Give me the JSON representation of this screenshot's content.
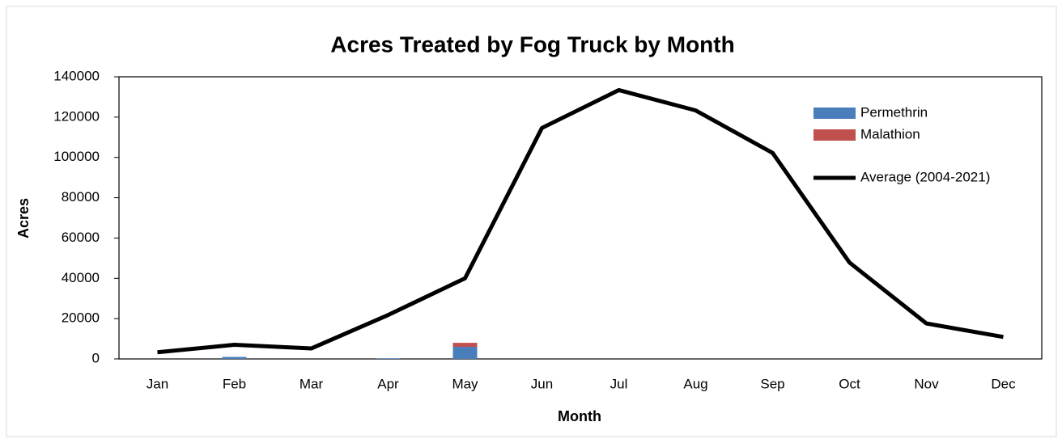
{
  "chart_data": {
    "type": "bar",
    "stacked": true,
    "title": "Acres Treated by Fog Truck by Month",
    "x_label": "Month",
    "y_label": "Acres",
    "categories": [
      "Jan",
      "Feb",
      "Mar",
      "Apr",
      "May",
      "Jun",
      "Jul",
      "Aug",
      "Sep",
      "Oct",
      "Nov",
      "Dec"
    ],
    "series": [
      {
        "name": "Permethrin",
        "type": "bar",
        "color": "#4a7ebb",
        "values": [
          0,
          1000,
          0,
          300,
          6000,
          0,
          0,
          0,
          0,
          0,
          0,
          0
        ]
      },
      {
        "name": "Malathion",
        "type": "bar",
        "color": "#c0504d",
        "values": [
          0,
          0,
          0,
          0,
          2000,
          0,
          0,
          0,
          0,
          0,
          0,
          0
        ]
      },
      {
        "name": "Average (2004-2021)",
        "type": "line",
        "color": "#000000",
        "values": [
          3300,
          7000,
          5200,
          21800,
          40000,
          114600,
          133400,
          123300,
          102200,
          47800,
          17600,
          10900
        ]
      }
    ],
    "ylim": [
      0,
      140000
    ],
    "yticks": [
      0,
      20000,
      40000,
      60000,
      80000,
      100000,
      120000,
      140000
    ],
    "legend": "top-right"
  }
}
